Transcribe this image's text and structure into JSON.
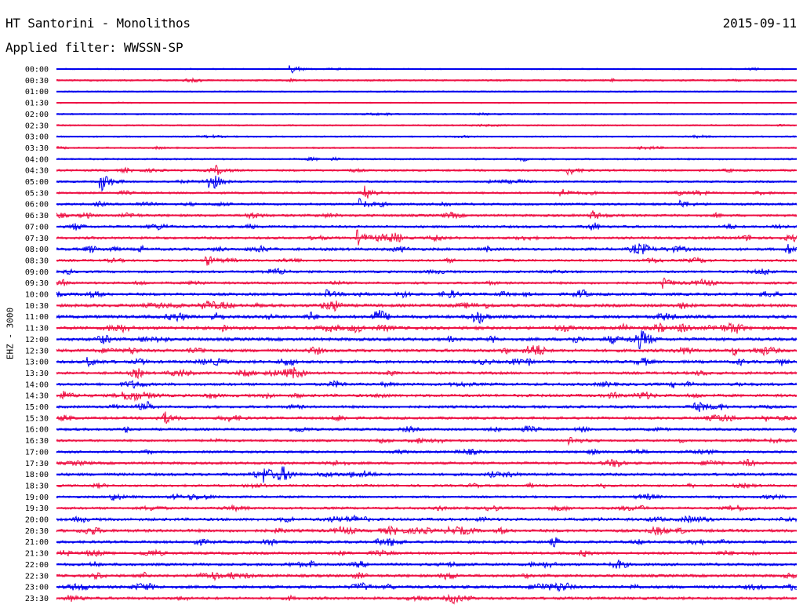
{
  "header": {
    "station": "HT Santorini - Monolithos",
    "date": "2015-09-11",
    "filter": "Applied filter: WWSSN-SP"
  },
  "channel": "EHZ - 3000",
  "colors": {
    "even_trace": "#0000ee",
    "odd_trace": "#ee1144",
    "background": "#ffffff"
  },
  "chart_data": {
    "type": "seismogram-helicorder",
    "title": "HT Santorini - Monolithos",
    "date": "2015-09-11",
    "filter": "WWSSN-SP",
    "channel": "EHZ - 3000",
    "trace_interval_minutes": 30,
    "tick_labels": [
      "00:00",
      "00:30",
      "01:00",
      "01:30",
      "02:00",
      "02:30",
      "03:00",
      "03:30",
      "04:00",
      "04:30",
      "05:00",
      "05:30",
      "06:00",
      "06:30",
      "07:00",
      "07:30",
      "08:00",
      "08:30",
      "09:00",
      "09:30",
      "10:00",
      "10:30",
      "11:00",
      "11:30",
      "12:00",
      "12:30",
      "13:00",
      "13:30",
      "14:00",
      "14:30",
      "15:00",
      "15:30",
      "16:00",
      "16:30",
      "17:00",
      "17:30",
      "18:00",
      "18:30",
      "19:00",
      "19:30",
      "20:00",
      "20:30",
      "21:00",
      "21:30",
      "22:00",
      "22:30",
      "23:00",
      "23:30"
    ],
    "activity_level": [
      0.8,
      1.3,
      0.5,
      0.5,
      1.0,
      0.9,
      1.0,
      1.2,
      1.3,
      1.8,
      1.7,
      2.0,
      2.3,
      2.6,
      2.6,
      2.8,
      3.2,
      2.3,
      2.4,
      2.4,
      3.2,
      3.6,
      3.8,
      4.0,
      3.8,
      3.6,
      3.4,
      3.0,
      3.1,
      3.2,
      2.8,
      2.8,
      2.6,
      2.4,
      2.4,
      2.8,
      3.0,
      2.4,
      2.2,
      2.6,
      3.2,
      3.4,
      3.0,
      2.8,
      3.0,
      3.2,
      3.4,
      3.0
    ],
    "events": [
      {
        "trace": 0,
        "minute": 9.5,
        "amp": 5
      },
      {
        "trace": 9,
        "minute": 6.5,
        "amp": 5
      },
      {
        "trace": 9,
        "minute": 20.7,
        "amp": 6
      },
      {
        "trace": 10,
        "minute": 1.8,
        "amp": 14
      },
      {
        "trace": 10,
        "minute": 6.2,
        "amp": 9
      },
      {
        "trace": 11,
        "minute": 12.5,
        "amp": 7
      },
      {
        "trace": 11,
        "minute": 20.4,
        "amp": 6
      },
      {
        "trace": 12,
        "minute": 12.3,
        "amp": 5
      },
      {
        "trace": 12,
        "minute": 25.3,
        "amp": 5
      },
      {
        "trace": 13,
        "minute": 21.7,
        "amp": 6
      },
      {
        "trace": 15,
        "minute": 12.2,
        "amp": 9
      },
      {
        "trace": 16,
        "minute": 29.6,
        "amp": 7
      },
      {
        "trace": 17,
        "minute": 6.1,
        "amp": 6
      },
      {
        "trace": 19,
        "minute": 24.6,
        "amp": 6
      },
      {
        "trace": 20,
        "minute": 10.9,
        "amp": 5
      },
      {
        "trace": 26,
        "minute": 1.3,
        "amp": 5
      },
      {
        "trace": 29,
        "minute": 0.2,
        "amp": 6
      },
      {
        "trace": 31,
        "minute": 4.4,
        "amp": 6
      },
      {
        "trace": 33,
        "minute": 20.8,
        "amp": 6
      },
      {
        "trace": 36,
        "minute": 8.4,
        "amp": 11
      },
      {
        "trace": 38,
        "minute": 2.2,
        "amp": 6
      },
      {
        "trace": 42,
        "minute": 5.6,
        "amp": 6
      }
    ]
  }
}
